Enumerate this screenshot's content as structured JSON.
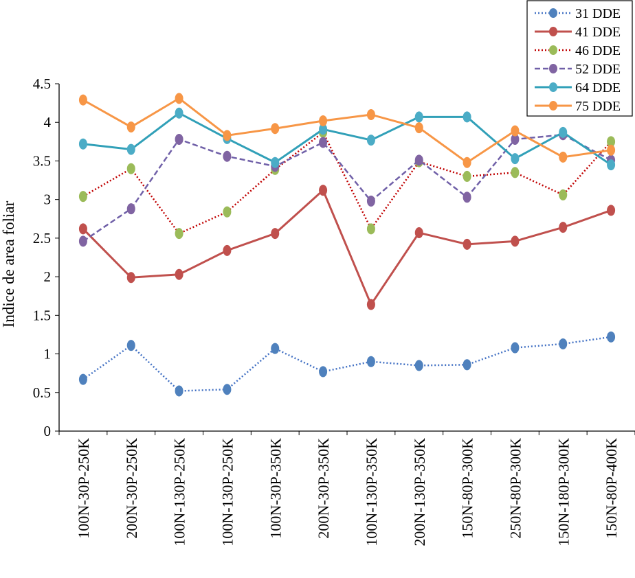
{
  "chart_data": {
    "type": "line",
    "title": "",
    "xlabel": "",
    "ylabel": "Indice de area foliar",
    "ylim": [
      0,
      4.5
    ],
    "yticks": [
      "0",
      "0.5",
      "1",
      "1.5",
      "2",
      "2.5",
      "3",
      "3.5",
      "4",
      "4.5"
    ],
    "grid": false,
    "legend_position": "top-right",
    "categories": [
      "100N-30P-250K",
      "200N-30P-250K",
      "100N-130P-250K",
      "100N-130P-250K",
      "100N-30P-350K",
      "200N-30P-350K",
      "100N-130P-350K",
      "200N-130P-350K",
      "150N-80P-300K",
      "250N-80P-300K",
      "150N-180P-300K",
      "150N-80P-400K"
    ],
    "series": [
      {
        "name": "31 DDE",
        "line_color": "#4472C4",
        "marker_color": "#4F81BD",
        "dash": "dotted",
        "values": [
          0.67,
          1.11,
          0.52,
          0.54,
          1.07,
          0.77,
          0.9,
          0.85,
          0.86,
          1.08,
          1.13,
          1.22
        ]
      },
      {
        "name": "41 DDE",
        "line_color": "#C0504D",
        "marker_color": "#C0504D",
        "dash": "solid",
        "values": [
          2.62,
          1.99,
          2.03,
          2.34,
          2.56,
          3.12,
          1.64,
          2.57,
          2.42,
          2.46,
          2.64,
          2.86
        ]
      },
      {
        "name": "46 DDE",
        "line_color": "#C00000",
        "marker_color": "#9BBB59",
        "dash": "dotted",
        "values": [
          3.04,
          3.4,
          2.56,
          2.84,
          3.39,
          3.87,
          2.62,
          3.49,
          3.3,
          3.35,
          3.06,
          3.75
        ]
      },
      {
        "name": "52 DDE",
        "line_color": "#7060A8",
        "marker_color": "#8064A2",
        "dash": "dashed",
        "values": [
          2.46,
          2.88,
          3.78,
          3.56,
          3.43,
          3.74,
          2.98,
          3.51,
          3.03,
          3.78,
          3.84,
          3.51
        ]
      },
      {
        "name": "64 DDE",
        "line_color": "#31A0B8",
        "marker_color": "#4BACC6",
        "dash": "solid",
        "values": [
          3.72,
          3.65,
          4.12,
          3.79,
          3.48,
          3.91,
          3.77,
          4.07,
          4.07,
          3.53,
          3.87,
          3.45
        ]
      },
      {
        "name": "75 DDE",
        "line_color": "#F79646",
        "marker_color": "#F79646",
        "dash": "solid",
        "values": [
          4.29,
          3.94,
          4.31,
          3.83,
          3.92,
          4.02,
          4.1,
          3.93,
          3.48,
          3.89,
          3.55,
          3.64
        ]
      }
    ]
  }
}
